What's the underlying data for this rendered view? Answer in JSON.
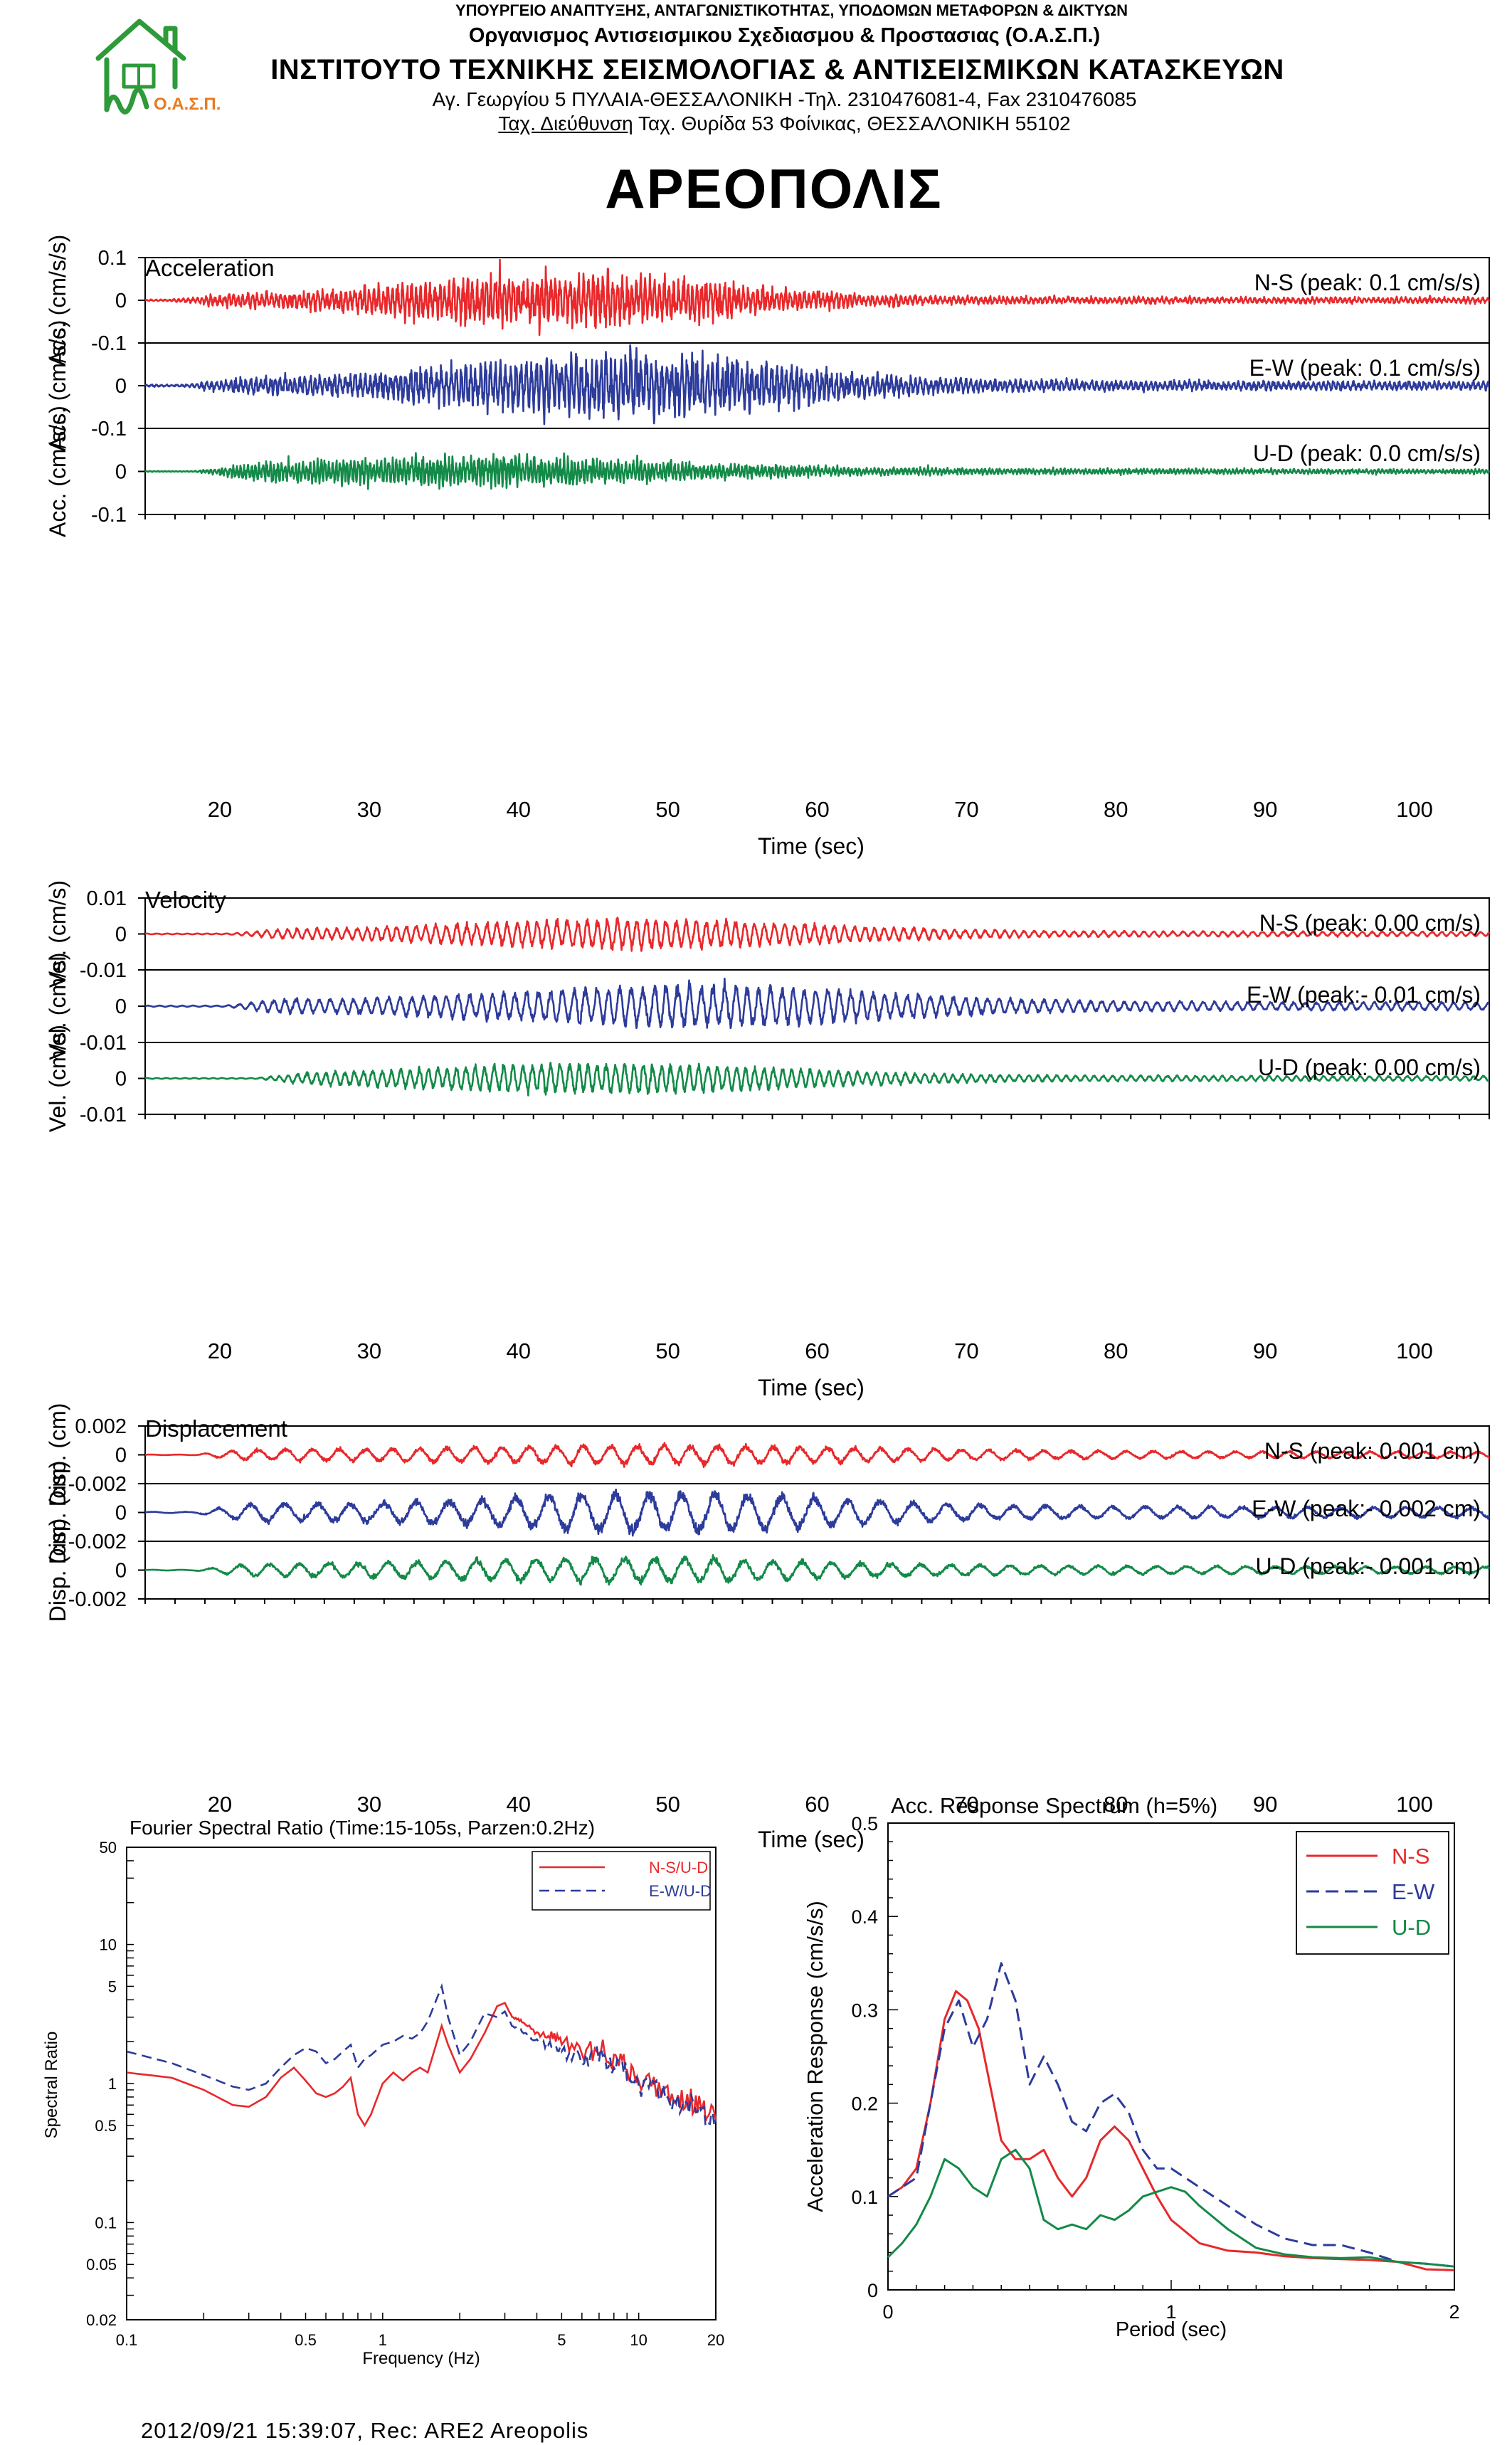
{
  "header": {
    "ministry": "ΥΠΟΥΡΓΕΙΟ ΑΝΑΠΤΥΞΗΣ, ΑΝΤΑΓΩΝΙΣΤΙΚΟΤΗΤΑΣ, ΥΠΟΔΟΜΩΝ ΜΕΤΑΦΟΡΩΝ & ΔΙΚΤΥΩΝ",
    "organization": "Οργανισμος Αντισεισμικου Σχεδιασμου & Προστασιας (Ο.Α.Σ.Π.)",
    "institute": "ΙΝΣΤΙΤΟΥΤΟ ΤΕΧΝΙΚΗΣ ΣΕΙΣΜΟΛΟΓΙΑΣ & ΑΝΤΙΣΕΙΣΜΙΚΩΝ ΚΑΤΑΣΚΕΥΩΝ",
    "address": "Αγ. Γεωργίου 5 ΠΥΛΑΙΑ-ΘΕΣΣΑΛΟΝΙΚΗ -Τηλ. 2310476081-4,  Fax 2310476085",
    "postal_label": "Ταχ. Διεύθυνση",
    "postal_address": " Ταχ. Θυρίδα 53 Φοίνικας, ΘΕΣΣΑΛΟΝΙΚΗ 55102",
    "logo_text": "Ο.Α.Σ.Π.",
    "station": "ΑΡΕΟΠΟΛΙΣ"
  },
  "colors": {
    "ns": "#e8282b",
    "ew": "#2d3b9b",
    "ud": "#138a48",
    "frame": "#000000",
    "grid": "#9a9a9a"
  },
  "footer": "2012/09/21 15:39:07, Rec: ARE2 Areopolis",
  "chart_data": [
    {
      "type": "line",
      "title": "Acceleration",
      "xlabel": "Time (sec)",
      "xlim": [
        15,
        105
      ],
      "xticks": [
        20,
        30,
        40,
        50,
        60,
        70,
        80,
        90,
        100
      ],
      "ylabel": "Acc. (cm/s/s)",
      "ylim": [
        -0.1,
        0.1
      ],
      "yticks": [
        "0.1",
        "0",
        "-0.1"
      ],
      "series": [
        {
          "name": "N-S",
          "label": "N-S (peak: 0.1 cm/s/s)",
          "color": "ns",
          "peak": 0.1,
          "onset": 16,
          "center": 43,
          "width": 14,
          "tail": 0.18,
          "freq": 3.2,
          "seed": 11
        },
        {
          "name": "E-W",
          "label": "E-W (peak: 0.1 cm/s/s)",
          "color": "ew",
          "peak": 0.1,
          "onset": 17,
          "center": 47,
          "width": 14,
          "tail": 0.22,
          "freq": 3.0,
          "seed": 23
        },
        {
          "name": "U-D",
          "label": "U-D (peak: 0.0 cm/s/s)",
          "color": "ud",
          "peak": 0.045,
          "onset": 18,
          "center": 37,
          "width": 18,
          "tail": 0.25,
          "freq": 4.0,
          "seed": 37
        }
      ]
    },
    {
      "type": "line",
      "title": "Velocity",
      "xlabel": "Time (sec)",
      "xlim": [
        15,
        105
      ],
      "xticks": [
        20,
        30,
        40,
        50,
        60,
        70,
        80,
        90,
        100
      ],
      "ylabel": "Vel. (cm/s)",
      "ylim": [
        -0.01,
        0.01
      ],
      "yticks": [
        "0.01",
        "0",
        "-0.01"
      ],
      "series": [
        {
          "name": "N-S",
          "label": "N-S (peak: 0.00 cm/s)",
          "color": "ns",
          "peak": 0.005,
          "onset": 20,
          "center": 48,
          "width": 16,
          "tail": 0.25,
          "freq": 1.5,
          "seed": 41
        },
        {
          "name": "E-W",
          "label": "E-W (peak:- 0.01 cm/s)",
          "color": "ew",
          "peak": 0.008,
          "onset": 20,
          "center": 52,
          "width": 16,
          "tail": 0.3,
          "freq": 1.3,
          "seed": 53
        },
        {
          "name": "U-D",
          "label": "U-D (peak: 0.00 cm/s)",
          "color": "ud",
          "peak": 0.005,
          "onset": 22,
          "center": 46,
          "width": 16,
          "tail": 0.25,
          "freq": 1.6,
          "seed": 67
        }
      ]
    },
    {
      "type": "line",
      "title": "Displacement",
      "xlabel": "Time (sec)",
      "xlim": [
        15,
        105
      ],
      "xticks": [
        20,
        30,
        40,
        50,
        60,
        70,
        80,
        90,
        100
      ],
      "ylabel": "Disp. (cm)",
      "ylim": [
        -0.002,
        0.002
      ],
      "yticks": [
        "0.002",
        "0",
        "-0.002"
      ],
      "series": [
        {
          "name": "N-S",
          "label": "N-S (peak: 0.001 cm)",
          "color": "ns",
          "peak": 0.0009,
          "onset": 18,
          "center": 50,
          "width": 18,
          "tail": 0.5,
          "freq": 0.55,
          "seed": 71
        },
        {
          "name": "E-W",
          "label": "E-W (peak:- 0.002 cm)",
          "color": "ew",
          "peak": 0.0017,
          "onset": 18,
          "center": 50,
          "width": 14,
          "tail": 0.4,
          "freq": 0.45,
          "seed": 83
        },
        {
          "name": "U-D",
          "label": "U-D (peak:- 0.001 cm)",
          "color": "ud",
          "peak": 0.0011,
          "onset": 18,
          "center": 48,
          "width": 16,
          "tail": 0.45,
          "freq": 0.5,
          "seed": 97
        }
      ]
    },
    {
      "type": "line",
      "title": "Fourier Spectral Ratio (Time:15-105s, Parzen:0.2Hz)",
      "xlabel": "Frequency (Hz)",
      "ylabel": "Spectral Ratio",
      "xscale": "log",
      "yscale": "log",
      "xlim": [
        0.1,
        20
      ],
      "ylim": [
        0.02,
        50
      ],
      "xticks": [
        "0.1",
        "0.5",
        "1",
        "5",
        "10",
        "20"
      ],
      "yticks": [
        "50",
        "10",
        "5",
        "1",
        "0.5",
        "0.1",
        "0.05",
        "0.02"
      ],
      "legend": "top-right",
      "series": [
        {
          "name": "N-S/U-D",
          "color": "ns",
          "dash": false,
          "x": [
            0.1,
            0.15,
            0.2,
            0.26,
            0.3,
            0.35,
            0.4,
            0.45,
            0.5,
            0.55,
            0.6,
            0.65,
            0.7,
            0.75,
            0.8,
            0.85,
            0.9,
            1.0,
            1.1,
            1.2,
            1.3,
            1.4,
            1.5,
            1.7,
            1.8,
            2.0,
            2.2,
            2.5,
            2.8,
            3.0,
            3.2,
            3.5,
            4.0,
            4.5,
            5.0,
            6.0,
            7.0,
            8.0,
            9.0,
            10,
            12,
            14,
            16,
            18,
            20
          ],
          "y": [
            1.2,
            1.1,
            0.9,
            0.7,
            0.68,
            0.8,
            1.1,
            1.3,
            1.05,
            0.85,
            0.8,
            0.85,
            0.95,
            1.1,
            0.6,
            0.5,
            0.6,
            1.0,
            1.2,
            1.05,
            1.2,
            1.3,
            1.2,
            2.6,
            1.9,
            1.2,
            1.5,
            2.3,
            3.6,
            3.8,
            3.0,
            2.8,
            2.3,
            2.2,
            2.1,
            1.6,
            1.8,
            1.5,
            1.3,
            1.1,
            0.95,
            0.8,
            0.75,
            0.65,
            0.55
          ]
        },
        {
          "name": "E-W/U-D",
          "color": "ew",
          "dash": true,
          "x": [
            0.1,
            0.15,
            0.2,
            0.26,
            0.3,
            0.35,
            0.4,
            0.45,
            0.5,
            0.55,
            0.6,
            0.65,
            0.7,
            0.75,
            0.8,
            0.85,
            0.9,
            1.0,
            1.1,
            1.2,
            1.3,
            1.4,
            1.5,
            1.7,
            1.8,
            2.0,
            2.2,
            2.5,
            2.8,
            3.0,
            3.2,
            3.5,
            4.0,
            4.5,
            5.0,
            6.0,
            7.0,
            8.0,
            9.0,
            10,
            12,
            14,
            16,
            18,
            20
          ],
          "y": [
            1.7,
            1.4,
            1.15,
            0.95,
            0.9,
            1.0,
            1.3,
            1.6,
            1.8,
            1.7,
            1.4,
            1.5,
            1.7,
            1.9,
            1.3,
            1.5,
            1.6,
            1.9,
            2.0,
            2.2,
            2.1,
            2.3,
            2.8,
            5.0,
            3.0,
            1.6,
            2.0,
            3.2,
            3.0,
            3.3,
            2.6,
            2.4,
            2.0,
            1.9,
            1.7,
            1.5,
            1.6,
            1.4,
            1.2,
            1.0,
            0.85,
            0.75,
            0.7,
            0.6,
            0.55
          ]
        }
      ]
    },
    {
      "type": "line",
      "title": "Acc. Response Spectrum (h=5%)",
      "xlabel": "Period (sec)",
      "ylabel": "Acceleration Response (cm/s/s)",
      "xlim": [
        0,
        2
      ],
      "ylim": [
        0,
        0.5
      ],
      "xticks": [
        "0",
        "1",
        "2"
      ],
      "yticks": [
        "0.5",
        "0.4",
        "0.3",
        "0.2",
        "0.1",
        "0"
      ],
      "legend": "top-right",
      "series": [
        {
          "name": "N-S",
          "color": "ns",
          "dash": false,
          "x": [
            0,
            0.05,
            0.1,
            0.15,
            0.2,
            0.24,
            0.28,
            0.32,
            0.36,
            0.4,
            0.45,
            0.5,
            0.55,
            0.6,
            0.65,
            0.7,
            0.75,
            0.8,
            0.85,
            0.9,
            0.95,
            1.0,
            1.1,
            1.2,
            1.3,
            1.4,
            1.5,
            1.6,
            1.7,
            1.8,
            1.9,
            2.0
          ],
          "y": [
            0.1,
            0.11,
            0.13,
            0.2,
            0.29,
            0.32,
            0.31,
            0.28,
            0.22,
            0.16,
            0.14,
            0.14,
            0.15,
            0.12,
            0.1,
            0.12,
            0.16,
            0.175,
            0.16,
            0.13,
            0.1,
            0.075,
            0.05,
            0.042,
            0.04,
            0.036,
            0.034,
            0.033,
            0.032,
            0.03,
            0.022,
            0.021
          ]
        },
        {
          "name": "E-W",
          "color": "ew",
          "dash": true,
          "x": [
            0,
            0.05,
            0.1,
            0.15,
            0.2,
            0.25,
            0.3,
            0.35,
            0.4,
            0.45,
            0.5,
            0.55,
            0.6,
            0.65,
            0.7,
            0.75,
            0.8,
            0.85,
            0.9,
            0.95,
            1.0,
            1.1,
            1.2,
            1.3,
            1.4,
            1.5,
            1.6,
            1.7,
            1.8,
            1.9,
            2.0
          ],
          "y": [
            0.1,
            0.11,
            0.12,
            0.2,
            0.28,
            0.31,
            0.26,
            0.29,
            0.35,
            0.31,
            0.22,
            0.25,
            0.22,
            0.18,
            0.17,
            0.2,
            0.21,
            0.19,
            0.15,
            0.13,
            0.13,
            0.11,
            0.09,
            0.07,
            0.055,
            0.048,
            0.048,
            0.04,
            0.03,
            0.028,
            0.025
          ]
        },
        {
          "name": "U-D",
          "color": "ud",
          "dash": false,
          "x": [
            0,
            0.05,
            0.1,
            0.15,
            0.2,
            0.25,
            0.3,
            0.35,
            0.4,
            0.45,
            0.5,
            0.55,
            0.6,
            0.65,
            0.7,
            0.75,
            0.8,
            0.85,
            0.9,
            0.95,
            1.0,
            1.05,
            1.1,
            1.2,
            1.3,
            1.4,
            1.5,
            1.6,
            1.7,
            1.8,
            1.9,
            2.0
          ],
          "y": [
            0.035,
            0.05,
            0.07,
            0.1,
            0.14,
            0.13,
            0.11,
            0.1,
            0.14,
            0.15,
            0.13,
            0.075,
            0.065,
            0.07,
            0.065,
            0.08,
            0.075,
            0.085,
            0.1,
            0.105,
            0.11,
            0.105,
            0.09,
            0.065,
            0.045,
            0.038,
            0.035,
            0.034,
            0.035,
            0.03,
            0.028,
            0.025
          ]
        }
      ]
    }
  ]
}
